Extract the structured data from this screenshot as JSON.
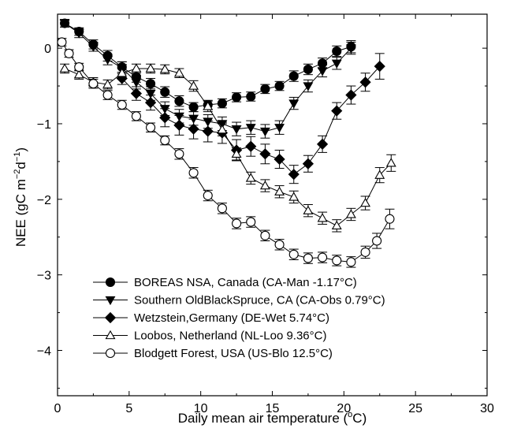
{
  "chart_data": {
    "type": "line",
    "title": "",
    "xlabel_main": "Daily mean air temperature (",
    "xlabel_sup": "o",
    "xlabel_end": "C)",
    "ylabel_main": "NEE (gC m",
    "ylabel_sup1": "−2",
    "ylabel_mid": "d",
    "ylabel_sup2": "−1",
    "ylabel_end": ")",
    "xlim": [
      0,
      30
    ],
    "ylim": [
      -4.6,
      0.45
    ],
    "xticks": [
      0,
      5,
      10,
      15,
      20,
      25,
      30
    ],
    "yticks": [
      0,
      -1,
      -2,
      -3,
      -4
    ],
    "grid": false,
    "legend_position": "lower-left",
    "series": [
      {
        "name": "BOREAS NSA, Canada (CA-Man -1.17°C)",
        "marker": "circle-filled",
        "x": [
          0.5,
          1.5,
          2.5,
          3.5,
          4.5,
          5.5,
          6.5,
          7.5,
          8.5,
          9.5,
          10.5,
          11.5,
          12.5,
          13.5,
          14.5,
          15.5,
          16.5,
          17.5,
          18.5,
          19.5,
          20.5
        ],
        "y": [
          0.33,
          0.22,
          0.05,
          -0.1,
          -0.25,
          -0.38,
          -0.47,
          -0.58,
          -0.7,
          -0.78,
          -0.75,
          -0.73,
          -0.65,
          -0.64,
          -0.54,
          -0.5,
          -0.37,
          -0.28,
          -0.2,
          -0.04,
          0.02
        ],
        "err": [
          0.05,
          0.05,
          0.06,
          0.07,
          0.07,
          0.07,
          0.07,
          0.07,
          0.07,
          0.06,
          0.06,
          0.06,
          0.06,
          0.06,
          0.06,
          0.06,
          0.07,
          0.07,
          0.07,
          0.07,
          0.08
        ]
      },
      {
        "name": "Southern OldBlackSpruce, CA (CA-Obs 0.79°C)",
        "marker": "triangle-down-filled",
        "x": [
          0.5,
          1.5,
          2.5,
          3.5,
          4.5,
          5.5,
          6.5,
          7.5,
          8.5,
          9.5,
          10.5,
          11.5,
          12.5,
          13.5,
          14.5,
          15.5,
          16.5,
          17.5,
          18.5,
          19.5,
          20.5
        ],
        "y": [
          0.33,
          0.2,
          0.02,
          -0.15,
          -0.26,
          -0.45,
          -0.6,
          -0.8,
          -0.9,
          -0.93,
          -0.97,
          -1.0,
          -1.07,
          -1.05,
          -1.1,
          -1.05,
          -0.73,
          -0.5,
          -0.3,
          -0.2,
          0.0
        ],
        "err": [
          0.05,
          0.06,
          0.06,
          0.07,
          0.08,
          0.09,
          0.09,
          0.09,
          0.09,
          0.09,
          0.09,
          0.09,
          0.09,
          0.09,
          0.09,
          0.09,
          0.08,
          0.08,
          0.08,
          0.08,
          0.08
        ]
      },
      {
        "name": "Wetzstein,Germany (DE-Wet 5.74°C)",
        "marker": "diamond-filled",
        "x": [
          4.5,
          5.5,
          6.5,
          7.5,
          8.5,
          9.5,
          10.5,
          11.5,
          12.5,
          13.5,
          14.5,
          15.5,
          16.5,
          17.5,
          18.5,
          19.5,
          20.5,
          21.5,
          22.5
        ],
        "y": [
          -0.4,
          -0.6,
          -0.72,
          -0.92,
          -1.02,
          -1.07,
          -1.1,
          -1.12,
          -1.35,
          -1.3,
          -1.4,
          -1.47,
          -1.67,
          -1.53,
          -1.27,
          -0.83,
          -0.62,
          -0.45,
          -0.24
        ],
        "err": [
          0.08,
          0.09,
          0.1,
          0.12,
          0.13,
          0.13,
          0.14,
          0.14,
          0.14,
          0.13,
          0.13,
          0.12,
          0.12,
          0.11,
          0.11,
          0.11,
          0.12,
          0.12,
          0.17
        ]
      },
      {
        "name": "Loobos, Netherland (NL-Loo 9.36°C)",
        "marker": "triangle-up-open",
        "x": [
          0.5,
          1.5,
          2.5,
          3.5,
          4.5,
          5.5,
          6.5,
          7.5,
          8.5,
          9.5,
          10.5,
          11.5,
          12.5,
          13.5,
          14.5,
          15.5,
          16.5,
          17.5,
          18.5,
          19.5,
          20.5,
          21.5,
          22.5,
          23.3
        ],
        "y": [
          -0.27,
          -0.35,
          -0.45,
          -0.48,
          -0.33,
          -0.27,
          -0.27,
          -0.28,
          -0.33,
          -0.5,
          -0.77,
          -1.08,
          -1.4,
          -1.72,
          -1.82,
          -1.9,
          -1.97,
          -2.15,
          -2.25,
          -2.35,
          -2.2,
          -2.05,
          -1.68,
          -1.52
        ],
        "err": [
          0.06,
          0.06,
          0.06,
          0.06,
          0.06,
          0.06,
          0.06,
          0.06,
          0.06,
          0.07,
          0.07,
          0.08,
          0.08,
          0.08,
          0.08,
          0.08,
          0.08,
          0.08,
          0.08,
          0.08,
          0.08,
          0.09,
          0.1,
          0.11
        ]
      },
      {
        "name": "Blodgett Forest, USA (US-Blo 12.5°C)",
        "marker": "circle-open",
        "x": [
          0.3,
          0.8,
          1.5,
          2.5,
          3.5,
          4.5,
          5.5,
          6.5,
          7.5,
          8.5,
          9.5,
          10.5,
          11.5,
          12.5,
          13.5,
          14.5,
          15.5,
          16.5,
          17.5,
          18.5,
          19.5,
          20.5,
          21.5,
          22.3,
          23.2
        ],
        "y": [
          0.08,
          -0.07,
          -0.25,
          -0.47,
          -0.62,
          -0.75,
          -0.9,
          -1.05,
          -1.22,
          -1.4,
          -1.65,
          -1.95,
          -2.12,
          -2.32,
          -2.3,
          -2.48,
          -2.6,
          -2.73,
          -2.78,
          -2.77,
          -2.81,
          -2.83,
          -2.7,
          -2.55,
          -2.26
        ],
        "err": [
          0.05,
          0.05,
          0.05,
          0.06,
          0.06,
          0.06,
          0.06,
          0.06,
          0.06,
          0.07,
          0.07,
          0.07,
          0.07,
          0.07,
          0.07,
          0.07,
          0.07,
          0.07,
          0.07,
          0.07,
          0.07,
          0.07,
          0.08,
          0.1,
          0.13
        ]
      }
    ]
  }
}
